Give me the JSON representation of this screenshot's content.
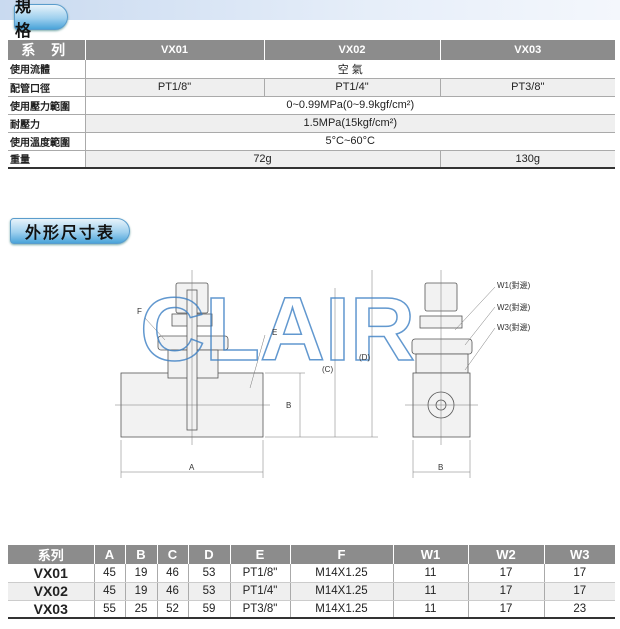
{
  "spec_section": {
    "title": "規 格"
  },
  "spec_table": {
    "header": [
      "系 列",
      "VX01",
      "VX02",
      "VX03"
    ],
    "rows": {
      "fluid": {
        "label": "使用流體",
        "value": "空 氣"
      },
      "port": {
        "label": "配管口徑",
        "values": [
          "PT1/8\"",
          "PT1/4\"",
          "PT3/8\""
        ]
      },
      "pressure": {
        "label": "使用壓力範圍",
        "value": "0~0.99MPa(0~9.9kgf/cm²)"
      },
      "proof": {
        "label": "耐壓力",
        "value": "1.5MPa(15kgf/cm²)"
      },
      "temp": {
        "label": "使用溫度範圍",
        "value": "5°C~60°C"
      },
      "weight": {
        "label": "重量",
        "values": [
          "72g",
          "130g"
        ]
      }
    }
  },
  "dims_section": {
    "title": "外形尺寸表"
  },
  "drawing": {
    "watermark": "CLAIR",
    "labels": {
      "F": "F",
      "E": "E",
      "A": "A",
      "B": "B",
      "C": "(C)",
      "D": "(D)",
      "B2": "B",
      "W1": "W1(對邊)",
      "W2": "W2(對邊)",
      "W3": "W3(對邊)"
    }
  },
  "dims_table": {
    "header": [
      "系列",
      "A",
      "B",
      "C",
      "D",
      "E",
      "F",
      "W1",
      "W2",
      "W3"
    ],
    "rows": [
      [
        "VX01",
        "45",
        "19",
        "46",
        "53",
        "PT1/8\"",
        "M14X1.25",
        "11",
        "17",
        "17"
      ],
      [
        "VX02",
        "45",
        "19",
        "46",
        "53",
        "PT1/4\"",
        "M14X1.25",
        "11",
        "17",
        "17"
      ],
      [
        "VX03",
        "55",
        "25",
        "52",
        "59",
        "PT3/8\"",
        "M14X1.25",
        "11",
        "17",
        "23"
      ]
    ]
  },
  "colors": {
    "header_gray": "#8c8c8c",
    "pill_blue": "#4aa4d9",
    "watermark": "#3b7fc4"
  }
}
